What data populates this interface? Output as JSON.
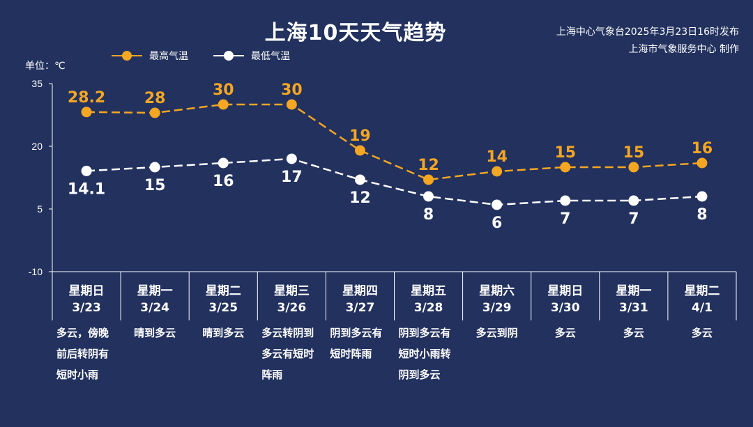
{
  "title": "上海10天天气趋势",
  "meta": {
    "line1": "上海中心气象台2025年3月23日16时发布",
    "line2": "上海市气象服务中心 制作"
  },
  "unit": "单位：℃",
  "colors": {
    "background": "#22315e",
    "high": "#f5a623",
    "low": "#ffffff"
  },
  "legend": [
    {
      "name": "最高气温",
      "color": "#f5a623"
    },
    {
      "name": "最低气温",
      "color": "#ffffff"
    }
  ],
  "days": [
    {
      "week": "星期日",
      "date": "3/23",
      "desc": "多云，傍晚前后转阴有短时小雨"
    },
    {
      "week": "星期一",
      "date": "3/24",
      "desc": "晴到多云"
    },
    {
      "week": "星期二",
      "date": "3/25",
      "desc": "晴到多云"
    },
    {
      "week": "星期三",
      "date": "3/26",
      "desc": "多云转阴到多云有短时阵雨"
    },
    {
      "week": "星期四",
      "date": "3/27",
      "desc": "阴到多云有短时阵雨"
    },
    {
      "week": "星期五",
      "date": "3/28",
      "desc": "阴到多云有短时小雨转阴到多云"
    },
    {
      "week": "星期六",
      "date": "3/29",
      "desc": "多云到阴"
    },
    {
      "week": "星期日",
      "date": "3/30",
      "desc": "多云"
    },
    {
      "week": "星期一",
      "date": "3/31",
      "desc": "多云"
    },
    {
      "week": "星期二",
      "date": "4/1",
      "desc": "多云"
    }
  ],
  "chart_data": {
    "type": "line",
    "x": [
      "3/23",
      "3/24",
      "3/25",
      "3/26",
      "3/27",
      "3/28",
      "3/29",
      "3/30",
      "3/31",
      "4/1"
    ],
    "series": [
      {
        "name": "最高气温",
        "values": [
          28.2,
          28,
          30,
          30,
          19,
          12,
          14,
          15,
          15,
          16
        ],
        "labels": [
          "28.2",
          "28",
          "30",
          "30",
          "19",
          "12",
          "14",
          "15",
          "15",
          "16"
        ]
      },
      {
        "name": "最低气温",
        "values": [
          14.1,
          15,
          16,
          17,
          12,
          8,
          6,
          7,
          7,
          8
        ],
        "labels": [
          "14.1",
          "15",
          "16",
          "17",
          "12",
          "8",
          "6",
          "7",
          "7",
          "8"
        ]
      }
    ],
    "ylim": [
      -10,
      35
    ],
    "yticks": [
      "35",
      "20",
      "5",
      "-10"
    ],
    "ylabel": "单位：℃",
    "grid": false,
    "legend_position": "top-left"
  }
}
